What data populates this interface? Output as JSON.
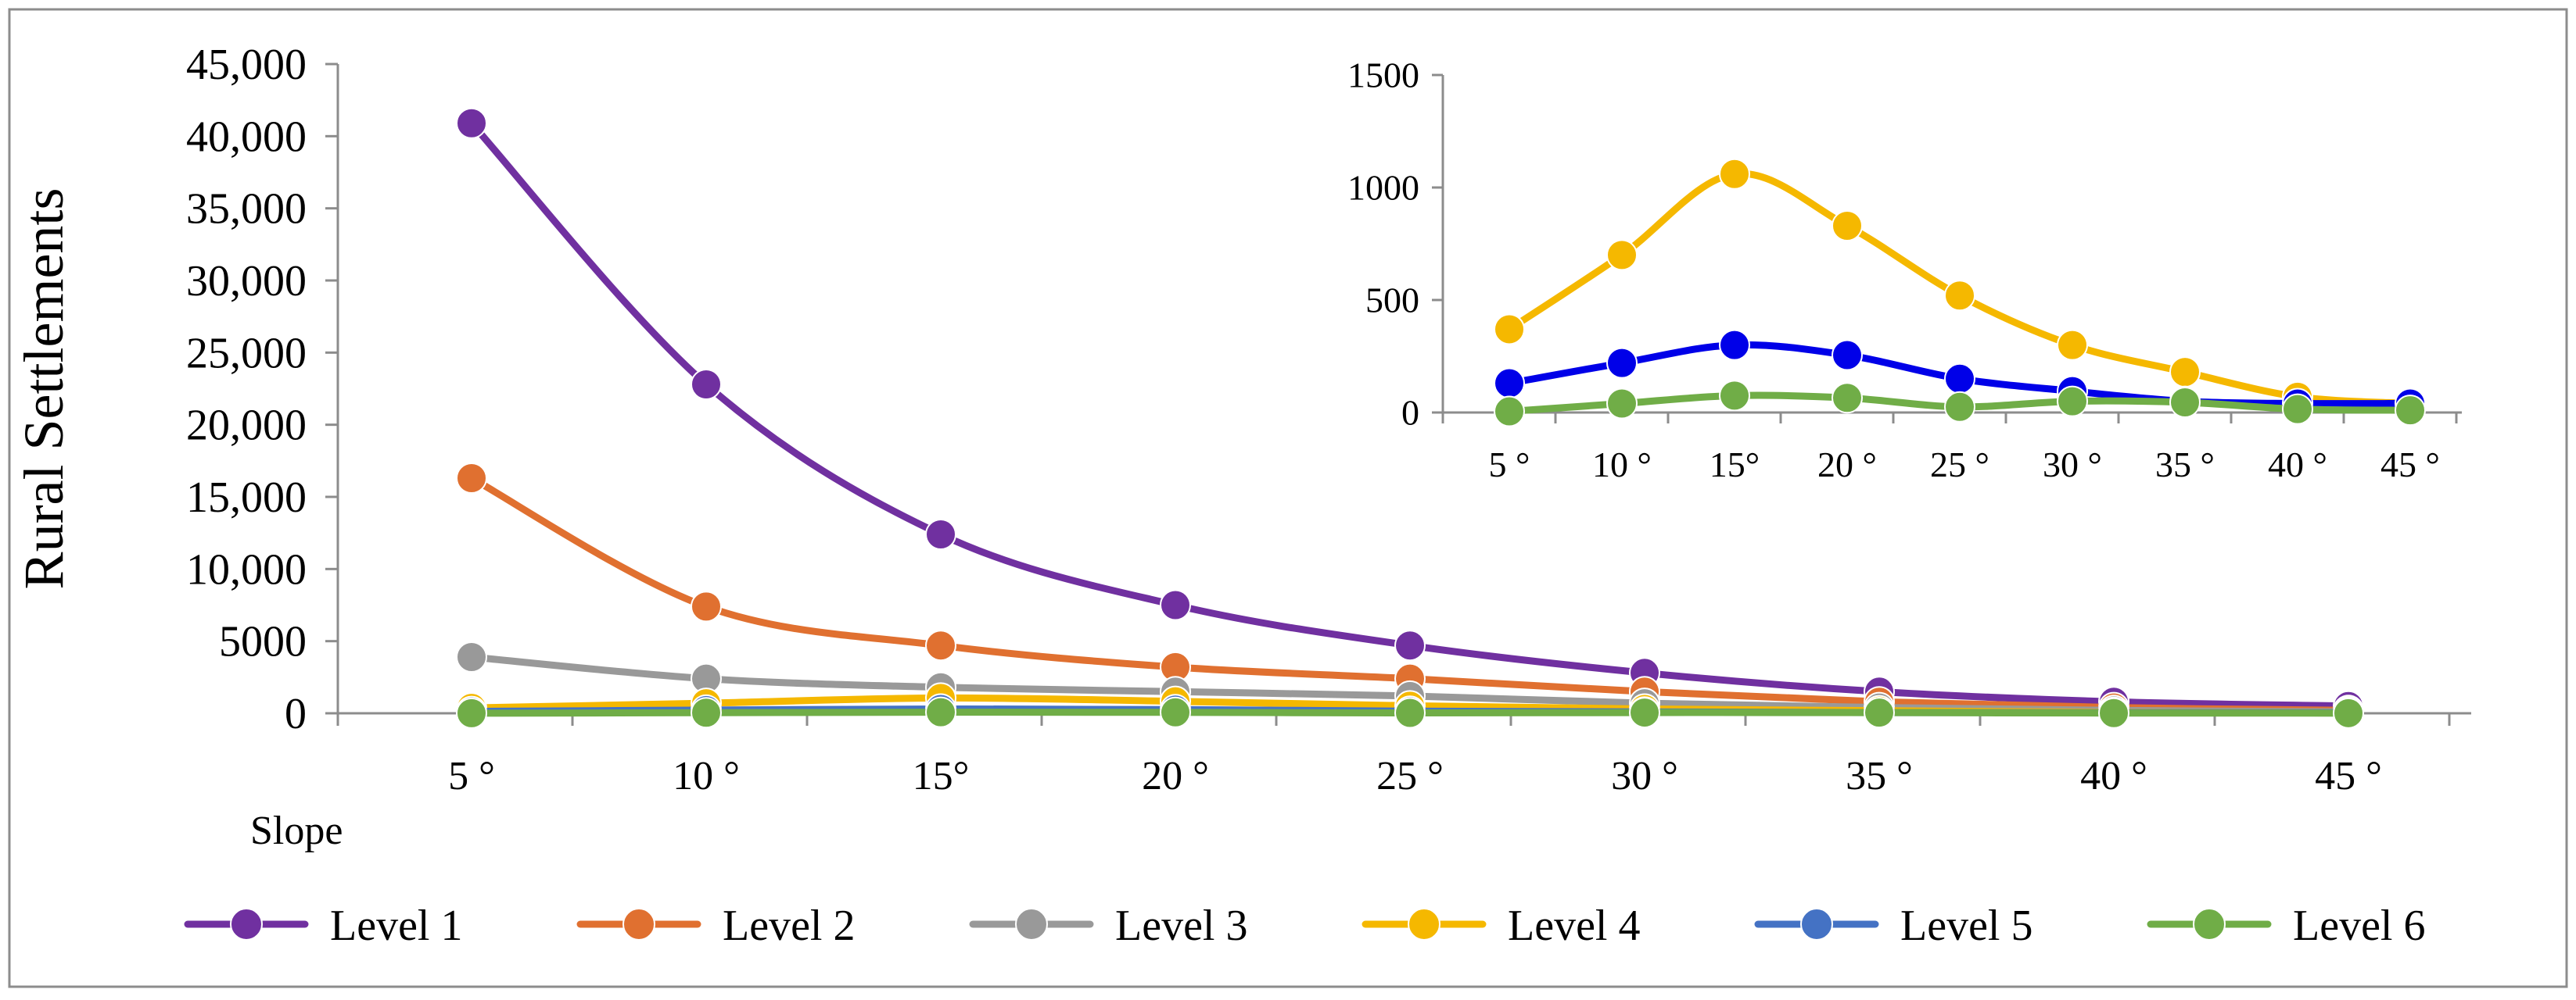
{
  "chart_data": [
    {
      "type": "line",
      "smooth": true,
      "title": "",
      "xlabel": "Slope",
      "ylabel": "Rural Settlements",
      "categories": [
        "5 °",
        "10 °",
        "15°",
        "20 °",
        "25 °",
        "30 °",
        "35 °",
        "40 °",
        "45 °"
      ],
      "ylim": [
        0,
        45000
      ],
      "yticks": [
        0,
        5000,
        10000,
        15000,
        20000,
        25000,
        30000,
        35000,
        40000,
        45000
      ],
      "ytick_labels": [
        "0",
        "5000",
        "10,000",
        "15,000",
        "20,000",
        "25,000",
        "30,000",
        "35,000",
        "40,000",
        "45,000"
      ],
      "legend": "bottom",
      "series": [
        {
          "name": "Level 1",
          "color": "#7030A0",
          "values": [
            40900,
            22800,
            12400,
            7500,
            4700,
            2800,
            1500,
            800,
            500
          ]
        },
        {
          "name": "Level 2",
          "color": "#E07030",
          "values": [
            16300,
            7400,
            4700,
            3200,
            2400,
            1500,
            800,
            400,
            200
          ]
        },
        {
          "name": "Level 3",
          "color": "#999999",
          "values": [
            3900,
            2400,
            1800,
            1500,
            1200,
            700,
            400,
            200,
            100
          ]
        },
        {
          "name": "Level 4",
          "color": "#F5B800",
          "values": [
            370,
            700,
            1060,
            830,
            520,
            300,
            180,
            70,
            40
          ]
        },
        {
          "name": "Level 5",
          "color": "#4472C4",
          "values": [
            130,
            220,
            300,
            255,
            150,
            95,
            50,
            40,
            40
          ]
        },
        {
          "name": "Level 6",
          "color": "#70AD47",
          "values": [
            5,
            40,
            75,
            65,
            25,
            50,
            45,
            15,
            10
          ]
        }
      ]
    },
    {
      "type": "line",
      "smooth": true,
      "title": "",
      "xlabel": "",
      "ylabel": "",
      "categories": [
        "5 °",
        "10 °",
        "15°",
        "20 °",
        "25 °",
        "30 °",
        "35 °",
        "40 °",
        "45 °"
      ],
      "ylim": [
        0,
        1500
      ],
      "yticks": [
        0,
        500,
        1000,
        1500
      ],
      "ytick_labels": [
        "0",
        "500",
        "1000",
        "1500"
      ],
      "series": [
        {
          "name": "Level 4",
          "color": "#F5B800",
          "values": [
            370,
            700,
            1060,
            830,
            520,
            300,
            180,
            70,
            40
          ]
        },
        {
          "name": "Level 5",
          "color": "#0000E8",
          "values": [
            130,
            220,
            300,
            255,
            150,
            95,
            50,
            40,
            40
          ]
        },
        {
          "name": "Level 6",
          "color": "#70AD47",
          "values": [
            5,
            40,
            75,
            65,
            25,
            50,
            45,
            15,
            10
          ]
        }
      ]
    }
  ]
}
